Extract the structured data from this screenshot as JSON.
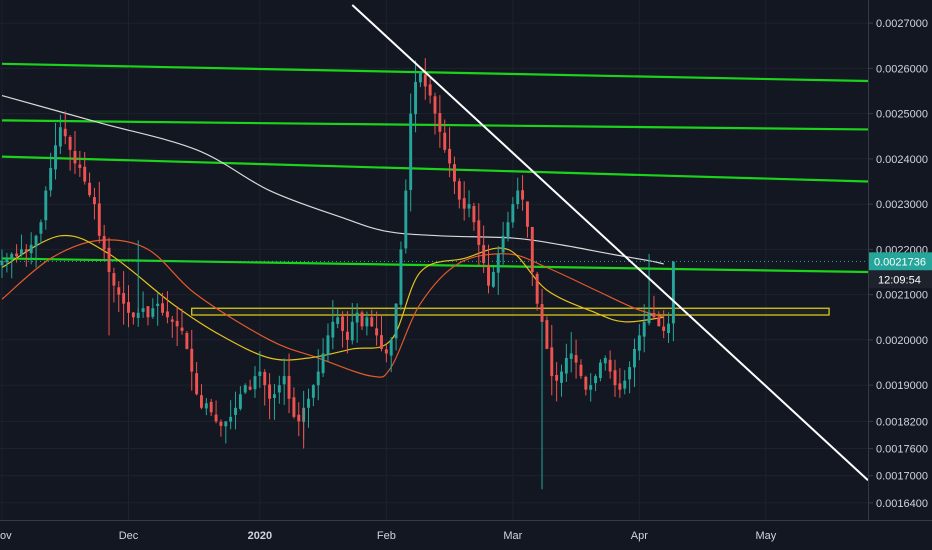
{
  "chart_data": {
    "type": "candlestick",
    "colors": {
      "background": "#131722",
      "grid": "#1e222d",
      "up": "#26a69a",
      "down": "#ef5350",
      "sma_white": "#d9d9d9",
      "ma_orange": "#e0592a",
      "ma_yellow": "#e3c21b",
      "trendline_white": "#ffffff",
      "channel_green": "#1cd31c",
      "zone_yellow": "#e3d41b",
      "price_tag_bg": "#26a69a",
      "countdown_bg": "#1e222d",
      "axis_text": "#d1d4dc"
    },
    "y_axis": {
      "min": 0.00158,
      "max": 0.00274,
      "ticks": [
        "0.0027000",
        "0.0026000",
        "0.0025000",
        "0.0024000",
        "0.0023000",
        "0.0022000",
        "0.0021000",
        "0.0020000",
        "0.0019000",
        "0.0018200",
        "0.0017600",
        "0.0017000",
        "0.0016400"
      ]
    },
    "x_axis": {
      "min_index": 0,
      "max_index": 178,
      "labels": [
        {
          "text": "ov",
          "index": 0,
          "bold": false
        },
        {
          "text": "Dec",
          "index": 26,
          "bold": false
        },
        {
          "text": "2020",
          "index": 53,
          "bold": true
        },
        {
          "text": "Feb",
          "index": 79,
          "bold": false
        },
        {
          "text": "Mar",
          "index": 105,
          "bold": false
        },
        {
          "text": "Apr",
          "index": 131,
          "bold": false
        },
        {
          "text": "May",
          "index": 157,
          "bold": false
        }
      ]
    },
    "candles_close": [
      0.002175,
      0.00218,
      0.00219,
      0.002185,
      0.0022,
      0.002195,
      0.00221,
      0.00223,
      0.00226,
      0.00233,
      0.00238,
      0.00243,
      0.00247,
      0.00245,
      0.00242,
      0.00239,
      0.00238,
      0.00235,
      0.00232,
      0.0023,
      0.00223,
      0.0022,
      0.00215,
      0.00212,
      0.0021,
      0.00208,
      0.00206,
      0.00205,
      0.00206,
      0.00207,
      0.00205,
      0.00207,
      0.00208,
      0.00206,
      0.00205,
      0.00204,
      0.00203,
      0.00202,
      0.00198,
      0.00193,
      0.00188,
      0.00185,
      0.00186,
      0.00184,
      0.00182,
      0.00181,
      0.00182,
      0.00183,
      0.00185,
      0.00188,
      0.0019,
      0.00189,
      0.00192,
      0.00193,
      0.0019,
      0.00187,
      0.00188,
      0.0019,
      0.00192,
      0.00187,
      0.00183,
      0.00182,
      0.00185,
      0.00187,
      0.0019,
      0.00193,
      0.00197,
      0.00201,
      0.00204,
      0.00205,
      0.00202,
      0.002,
      0.00204,
      0.00206,
      0.00203,
      0.00205,
      0.00203,
      0.00201,
      0.00198,
      0.00197,
      0.002,
      0.00208,
      0.0022,
      0.00233,
      0.0025,
      0.00257,
      0.00259,
      0.00256,
      0.00254,
      0.0025,
      0.00246,
      0.00242,
      0.00239,
      0.00235,
      0.00231,
      0.00229,
      0.0023,
      0.00226,
      0.00221,
      0.00217,
      0.00212,
      0.00215,
      0.00219,
      0.00223,
      0.00226,
      0.0023,
      0.00233,
      0.00231,
      0.00225,
      0.00215,
      0.00208,
      0.00204,
      0.00198,
      0.00192,
      0.00191,
      0.00193,
      0.00196,
      0.00197,
      0.00195,
      0.00192,
      0.00189,
      0.0019,
      0.00192,
      0.00195,
      0.00196,
      0.00193,
      0.0019,
      0.00189,
      0.00191,
      0.00194,
      0.00198,
      0.00201,
      0.00204,
      0.00206,
      0.00205,
      0.00203,
      0.00202,
      0.002036,
      0.002173
    ],
    "sma_white_points": [
      [
        0,
        0.00254
      ],
      [
        20,
        0.00248
      ],
      [
        40,
        0.00242
      ],
      [
        55,
        0.00233
      ],
      [
        70,
        0.00227
      ],
      [
        79,
        0.00224
      ],
      [
        90,
        0.00223
      ],
      [
        105,
        0.002225
      ],
      [
        115,
        0.00221
      ],
      [
        125,
        0.00219
      ],
      [
        133,
        0.002175
      ],
      [
        136,
        0.002168
      ]
    ],
    "ma_orange_points": [
      [
        0,
        0.00209
      ],
      [
        10,
        0.00218
      ],
      [
        20,
        0.00222
      ],
      [
        30,
        0.0022
      ],
      [
        40,
        0.0021
      ],
      [
        55,
        0.002
      ],
      [
        65,
        0.00196
      ],
      [
        76,
        0.00192
      ],
      [
        80,
        0.00194
      ],
      [
        86,
        0.00208
      ],
      [
        94,
        0.00217
      ],
      [
        104,
        0.00219
      ],
      [
        112,
        0.00216
      ],
      [
        122,
        0.00211
      ],
      [
        130,
        0.00207
      ],
      [
        136,
        0.00205
      ]
    ],
    "ma_yellow_points": [
      [
        0,
        0.00216
      ],
      [
        12,
        0.00223
      ],
      [
        22,
        0.00219
      ],
      [
        35,
        0.00208
      ],
      [
        45,
        0.00201
      ],
      [
        55,
        0.00196
      ],
      [
        63,
        0.00196
      ],
      [
        72,
        0.00198
      ],
      [
        80,
        0.002
      ],
      [
        86,
        0.00215
      ],
      [
        95,
        0.00218
      ],
      [
        104,
        0.0022
      ],
      [
        112,
        0.00211
      ],
      [
        122,
        0.00206
      ],
      [
        128,
        0.00204
      ],
      [
        136,
        0.00205
      ]
    ],
    "trendline_white": [
      [
        72,
        0.00274
      ],
      [
        178,
        0.00169
      ]
    ],
    "channel_lines": [
      [
        [
          0,
          0.00261
        ],
        [
          178,
          0.002572
        ]
      ],
      [
        [
          0,
          0.002485
        ],
        [
          178,
          0.002465
        ]
      ],
      [
        [
          0,
          0.002405
        ],
        [
          178,
          0.00235
        ]
      ],
      [
        [
          0,
          0.00218
        ],
        [
          178,
          0.00215
        ]
      ]
    ],
    "zone_rect": {
      "x_start": 39,
      "x_end": 170,
      "y_top": 0.00207,
      "y_bottom": 0.002055
    },
    "last_price": "0.0021736",
    "countdown": "12:09:54"
  }
}
